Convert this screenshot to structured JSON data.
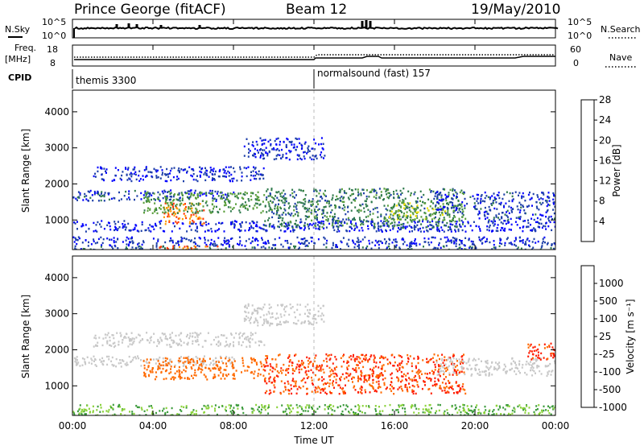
{
  "header": {
    "station": "Prince George (fitACF)",
    "beam": "Beam 12",
    "date": "19/May/2010"
  },
  "panel_labels": {
    "nsky": "N.Sky",
    "nsky_tick_top": "10^5",
    "nsky_tick_bottom": "10^0",
    "nsearch": "N.Search",
    "nsearch_tick_top": "10^5",
    "nsearch_tick_bottom": "10^0",
    "freq_line1": "Freq.",
    "freq_line2": "[MHz]",
    "freq_tick_top": "18",
    "freq_tick_bottom": "8",
    "nave": "Nave",
    "nave_tick_top": "60",
    "nave_tick_bottom": "0",
    "cpid": "CPID",
    "cpid_segment_1": "themis 3300",
    "cpid_segment_2": "normalsound (fast) 157"
  },
  "chart_data": [
    {
      "type": "heatmap",
      "parameter": "power",
      "ylabel": "Slant Range [km]",
      "ylim": [
        180,
        4600
      ],
      "yticks": [
        "1000",
        "2000",
        "3000",
        "4000"
      ],
      "colorbar_label": "Power [dB]",
      "colorbar_ticks": [
        "4",
        "8",
        "12",
        "16",
        "20",
        "24",
        "28"
      ],
      "colorscale": [
        "#0000ff",
        "#1c3ea8",
        "#2f7a4c",
        "#5a9e3c",
        "#f0e000",
        "#ff9a00",
        "#ff3500"
      ],
      "regions": [
        {
          "t": [
            0.0,
            24.0
          ],
          "r": [
            300,
            550
          ],
          "value": 5
        },
        {
          "t": [
            0.0,
            24.0
          ],
          "r": [
            180,
            300
          ],
          "value": 8
        },
        {
          "t": [
            0.0,
            24.0
          ],
          "r": [
            700,
            1000
          ],
          "value": 4
        },
        {
          "t": [
            0.0,
            8.0
          ],
          "r": [
            1550,
            1850
          ],
          "value": 6
        },
        {
          "t": [
            1.0,
            9.5
          ],
          "r": [
            2100,
            2500
          ],
          "value": 5
        },
        {
          "t": [
            4.5,
            6.5
          ],
          "r": [
            900,
            1500
          ],
          "value": 27
        },
        {
          "t": [
            3.5,
            9.5
          ],
          "r": [
            1200,
            1800
          ],
          "value": 14
        },
        {
          "t": [
            9.5,
            19.5
          ],
          "r": [
            800,
            1900
          ],
          "value": 11
        },
        {
          "t": [
            15.5,
            19.0
          ],
          "r": [
            1000,
            1500
          ],
          "value": 16
        },
        {
          "t": [
            8.5,
            12.5
          ],
          "r": [
            2700,
            3300
          ],
          "value": 4
        },
        {
          "t": [
            4.0,
            7.5
          ],
          "r": [
            150,
            300
          ],
          "value": 28
        },
        {
          "t": [
            18.0,
            24.0
          ],
          "r": [
            1300,
            1800
          ],
          "value": 6
        },
        {
          "t": [
            20.0,
            24.0
          ],
          "r": [
            1000,
            1300
          ],
          "value": 6
        }
      ]
    },
    {
      "type": "heatmap",
      "parameter": "velocity",
      "ylabel": "Slant Range [km]",
      "ylim": [
        180,
        4600
      ],
      "yticks": [
        "1000",
        "2000",
        "3000",
        "4000"
      ],
      "colorbar_label": "Velocity [m s⁻¹]",
      "colorbar_ticks": [
        "1000",
        "500",
        "100",
        "25",
        "-25",
        "-100",
        "-500",
        "-1000"
      ],
      "colorscale": [
        "#1030c0",
        "#2a6e8a",
        "#3a9a3a",
        "#8ad23a",
        "#c8c8c8",
        "#f5a000",
        "#ff6a00",
        "#ff1c00"
      ],
      "regions": [
        {
          "t": [
            0.0,
            8.0
          ],
          "r": [
            1550,
            1850
          ],
          "value": 0
        },
        {
          "t": [
            1.0,
            9.5
          ],
          "r": [
            2100,
            2500
          ],
          "value": 0
        },
        {
          "t": [
            3.5,
            9.5
          ],
          "r": [
            1200,
            1800
          ],
          "value": -100
        },
        {
          "t": [
            9.5,
            19.5
          ],
          "r": [
            800,
            1900
          ],
          "value": -300
        },
        {
          "t": [
            0.0,
            24.0
          ],
          "r": [
            180,
            500
          ],
          "value": 60
        },
        {
          "t": [
            8.5,
            12.5
          ],
          "r": [
            2700,
            3300
          ],
          "value": 0
        },
        {
          "t": [
            18.0,
            24.0
          ],
          "r": [
            1300,
            1800
          ],
          "value": 0
        },
        {
          "t": [
            22.5,
            24.0
          ],
          "r": [
            1700,
            2200
          ],
          "value": -400
        }
      ]
    }
  ],
  "time_axis": {
    "xlabel": "Time UT",
    "xlim": [
      0,
      24
    ],
    "ticks": [
      "00:00",
      "04:00",
      "08:00",
      "12:00",
      "16:00",
      "20:00",
      "00:00"
    ]
  }
}
